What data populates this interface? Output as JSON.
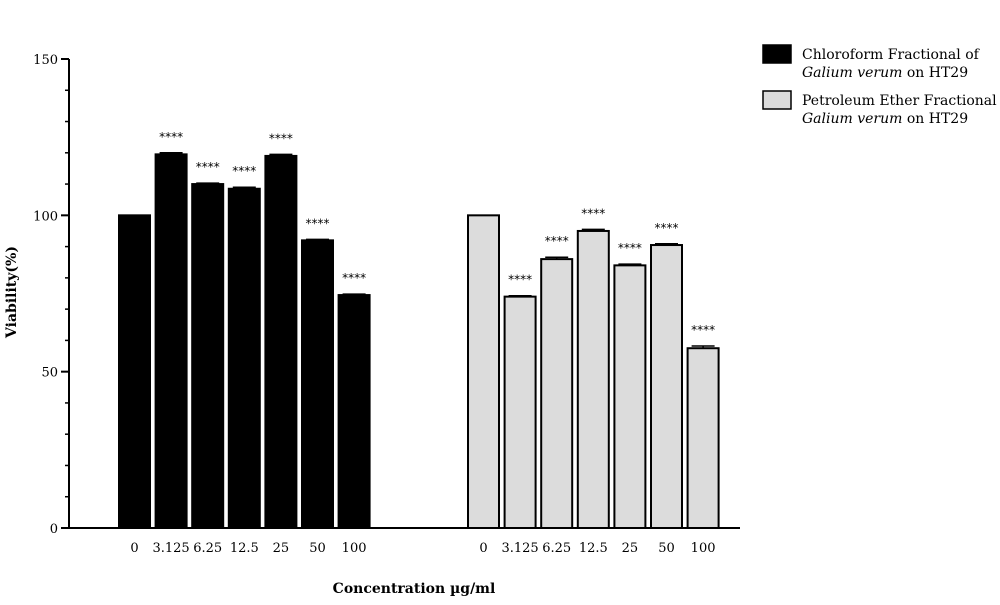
{
  "chart_data": {
    "type": "bar",
    "ylabel": "Viability(%)",
    "xlabel": "Concentration µg/ml",
    "ylim": [
      0,
      150
    ],
    "yticks": [
      0,
      50,
      100,
      150
    ],
    "grid": false,
    "legend_position": "top-right",
    "categories": [
      "0",
      "3.125",
      "6.25",
      "12.5",
      "25",
      "50",
      "100"
    ],
    "series": [
      {
        "name": "Chloroform Fractional of Galium verum on HT29",
        "legend_line1": "Chloroform Fractional of",
        "legend_italic": "Galium verum",
        "legend_rest": " on HT29",
        "fill": "#000000",
        "values": [
          100,
          119.5,
          110,
          108.5,
          119,
          92,
          74.5
        ],
        "errors": [
          0,
          0.5,
          0.3,
          0.5,
          0.5,
          0.3,
          0.3
        ],
        "significance": [
          "",
          "****",
          "****",
          "****",
          "****",
          "****",
          "****"
        ]
      },
      {
        "name": "Petroleum Ether Fractional of Galium verum on HT29",
        "legend_line1": "Petroleum Ether Fractional of",
        "legend_italic": "Galium verum",
        "legend_rest": " on HT29",
        "fill": "#dcdcdc",
        "values": [
          100,
          74,
          86,
          95,
          84,
          90.5,
          57.5
        ],
        "errors": [
          0,
          0.3,
          0.6,
          0.5,
          0.4,
          0.4,
          0.7
        ],
        "significance": [
          "",
          "****",
          "****",
          "****",
          "****",
          "****",
          "****"
        ]
      }
    ]
  }
}
